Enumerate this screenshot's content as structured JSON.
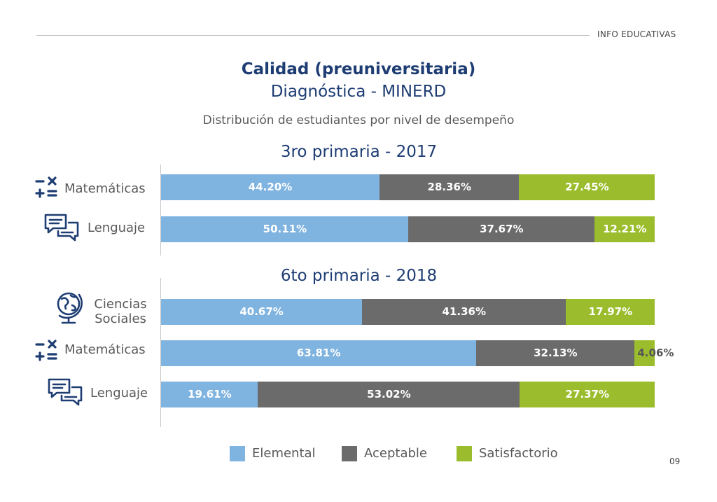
{
  "header": {
    "brand": "INFO EDUCATIVAS",
    "page_number": "09"
  },
  "colors": {
    "Elemental": "#7fb3e0",
    "Aceptable": "#6b6b6b",
    "Satisfactorio": "#9bbd2d",
    "title": "#1e3d73"
  },
  "chart_data": {
    "type": "bar",
    "orientation": "horizontal",
    "stacked": true,
    "normalized_percent": true,
    "title": "Calidad (preuniversitaria)",
    "subtitle": "Diagnóstica - MINERD",
    "description": "Distribución de estudiantes por nivel de desempeño",
    "legend": {
      "position": "bottom",
      "entries": [
        "Elemental",
        "Aceptable",
        "Satisfactorio"
      ]
    },
    "groups": [
      {
        "title": "3ro primaria - 2017",
        "rows": [
          {
            "subject": "Matemáticas",
            "icon": "math-operators-icon",
            "values": [
              44.2,
              28.36,
              27.45
            ],
            "labels": [
              "44.20%",
              "28.36%",
              "27.45%"
            ]
          },
          {
            "subject": "Lenguaje",
            "icon": "chat-bubbles-icon",
            "values": [
              50.11,
              37.67,
              12.21
            ],
            "labels": [
              "50.11%",
              "37.67%",
              "12.21%"
            ]
          }
        ]
      },
      {
        "title": "6to primaria - 2018",
        "rows": [
          {
            "subject": "Ciencias Sociales",
            "subject_lines": [
              "Ciencias",
              "Sociales"
            ],
            "icon": "globe-icon",
            "values": [
              40.67,
              41.36,
              17.97
            ],
            "labels": [
              "40.67%",
              "41.36%",
              "17.97%"
            ]
          },
          {
            "subject": "Matemáticas",
            "icon": "math-operators-icon",
            "values": [
              63.81,
              32.13,
              4.06
            ],
            "labels": [
              "63.81%",
              "32.13%",
              "4.06%"
            ]
          },
          {
            "subject": "Lenguaje",
            "icon": "chat-bubbles-icon",
            "values": [
              19.61,
              53.02,
              27.37
            ],
            "labels": [
              "19.61%",
              "53.02%",
              "27.37%"
            ]
          }
        ]
      }
    ]
  }
}
